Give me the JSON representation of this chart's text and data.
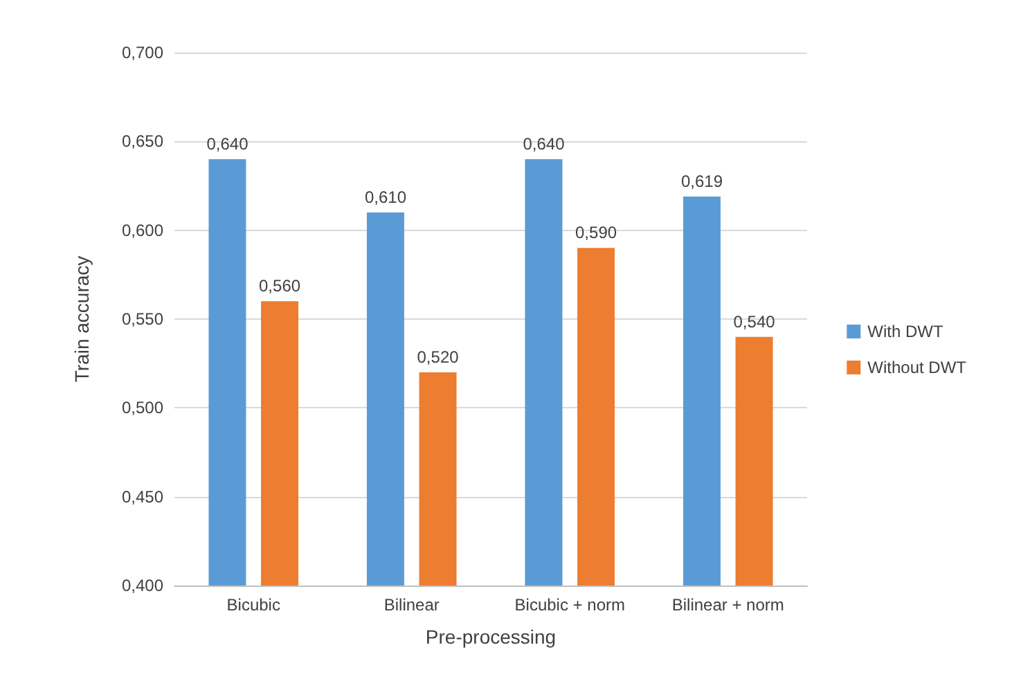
{
  "chart_data": {
    "type": "bar",
    "xlabel": "Pre-processing",
    "ylabel": "Train accuracy",
    "categories": [
      "Bicubic",
      "Bilinear",
      "Bicubic + norm",
      "Bilinear + norm"
    ],
    "series": [
      {
        "name": "With DWT",
        "color": "#5b9bd5",
        "values": [
          0.64,
          0.61,
          0.64,
          0.619
        ],
        "value_labels": [
          "0,640",
          "0,610",
          "0,640",
          "0,619"
        ]
      },
      {
        "name": "Without DWT",
        "color": "#ed7d31",
        "values": [
          0.56,
          0.52,
          0.59,
          0.54
        ],
        "value_labels": [
          "0,560",
          "0,520",
          "0,590",
          "0,540"
        ]
      }
    ],
    "ylim": [
      0.4,
      0.7
    ],
    "yticks": [
      {
        "value": 0.4,
        "label": "0,400"
      },
      {
        "value": 0.45,
        "label": "0,450"
      },
      {
        "value": 0.5,
        "label": "0,500"
      },
      {
        "value": 0.55,
        "label": "0,550"
      },
      {
        "value": 0.6,
        "label": "0,600"
      },
      {
        "value": 0.65,
        "label": "0,650"
      },
      {
        "value": 0.7,
        "label": "0,700"
      }
    ],
    "grid": "y",
    "legend": "right"
  }
}
